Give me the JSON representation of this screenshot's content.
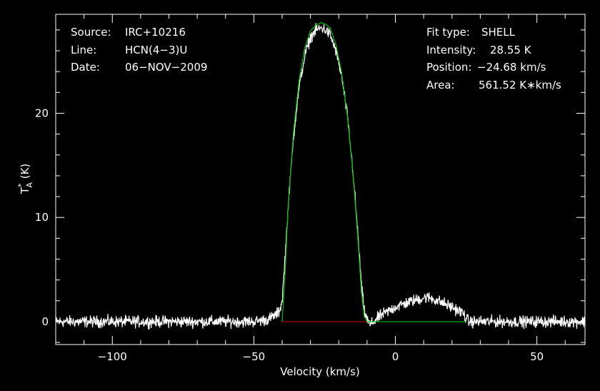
{
  "info_left": {
    "source_label": "Source:",
    "source_value": "IRC+10216",
    "line_label": "Line:",
    "line_value": "HCN(4−3)U",
    "date_label": "Date:",
    "date_value": "06−NOV−2009"
  },
  "info_right": {
    "fit_label": "Fit type:",
    "fit_value": "SHELL",
    "intensity_label": "Intensity:",
    "intensity_value": "28.55 K",
    "position_label": "Position:",
    "position_value": "−24.68 km/s",
    "area_label": "Area:",
    "area_value": "561.52 K∗km/s"
  },
  "colors": {
    "background": "#000000",
    "spectrum": "#ffffff",
    "fit": "#00c000",
    "baseline": "#c00000",
    "axes": "#ffffff"
  },
  "chart_data": {
    "type": "line",
    "xlabel": "Velocity (km/s)",
    "ylabel": "T",
    "ylabel_sub": "A",
    "ylabel_sup": "*",
    "ylabel_unit": " (K)",
    "xlim": [
      -120,
      67
    ],
    "ylim": [
      -2.2,
      29.5
    ],
    "xticks": [
      -100,
      -50,
      0,
      50
    ],
    "xtick_labels": [
      "−100",
      "−50",
      "0",
      "50"
    ],
    "yticks": [
      0,
      10,
      20
    ],
    "ytick_labels": [
      "0",
      "10",
      "20"
    ],
    "grid": false,
    "series": [
      {
        "role": "spectrum",
        "x": [
          -120,
          -110,
          -100,
          -90,
          -80,
          -70,
          -60,
          -50,
          -45,
          -42,
          -41,
          -40,
          -39,
          -38,
          -36,
          -34,
          -32,
          -30,
          -28,
          -26,
          -24.7,
          -23,
          -21,
          -19,
          -17,
          -15,
          -13,
          -12,
          -11,
          -10,
          -9,
          -5,
          0,
          5,
          10,
          12,
          15,
          20,
          24,
          25,
          26,
          30,
          40,
          50,
          60,
          67
        ],
        "y": [
          0,
          0,
          0,
          0,
          0,
          0,
          0,
          0,
          0.2,
          0.7,
          1.0,
          2.0,
          6.0,
          10.5,
          17.8,
          22.5,
          25.5,
          27.3,
          28.0,
          28.2,
          28.0,
          27.5,
          26.0,
          23.6,
          19.8,
          14.5,
          7.5,
          3.5,
          1.0,
          0.2,
          -0.3,
          0.6,
          1.4,
          1.9,
          2.3,
          2.3,
          2.0,
          1.4,
          0.8,
          0.3,
          0,
          0,
          0,
          0,
          0,
          0
        ]
      },
      {
        "role": "fit",
        "x": [
          -40,
          -39,
          -38,
          -36,
          -34,
          -32,
          -30,
          -28,
          -26,
          -24.7,
          -23,
          -21,
          -19,
          -17,
          -15,
          -13,
          -12,
          -11,
          -10,
          0,
          10,
          20,
          25
        ],
        "y": [
          0,
          4.5,
          10.5,
          18.2,
          23.2,
          26.3,
          27.9,
          28.5,
          28.7,
          28.55,
          28.2,
          26.6,
          23.9,
          19.8,
          14.4,
          7.0,
          2.8,
          0.5,
          0,
          0,
          0,
          0,
          0
        ]
      },
      {
        "role": "fit-baseline",
        "x": [
          -40,
          -10
        ],
        "y": [
          0,
          0
        ]
      }
    ]
  }
}
